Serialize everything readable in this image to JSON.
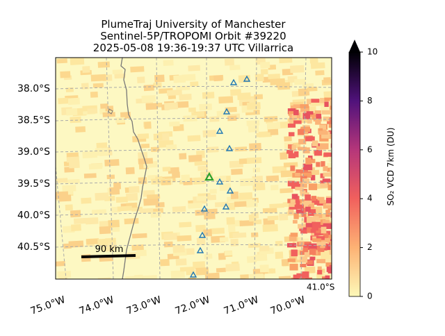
{
  "title": [
    "PlumeTraj    University of Manchester",
    "Sentinel-5P/TROPOMI Orbit #39220",
    "2025-05-08   19:36-19:37 UTC   Villarrica"
  ],
  "map": {
    "lat_labels": [
      "38.0°S",
      "38.5°S",
      "39.0°S",
      "39.5°S",
      "40.0°S",
      "40.5°S",
      "41.0°S"
    ],
    "lon_labels": [
      "75.0°W",
      "74.0°W",
      "73.0°W",
      "72.0°W",
      "71.0°W",
      "70.0°W"
    ],
    "scale_bar": "90 km"
  },
  "colorbar": {
    "label": "SO₂ VCD 7km (DU)",
    "lim": [
      0,
      10
    ],
    "ticks": [
      0,
      2,
      4,
      6,
      8,
      10
    ]
  }
}
